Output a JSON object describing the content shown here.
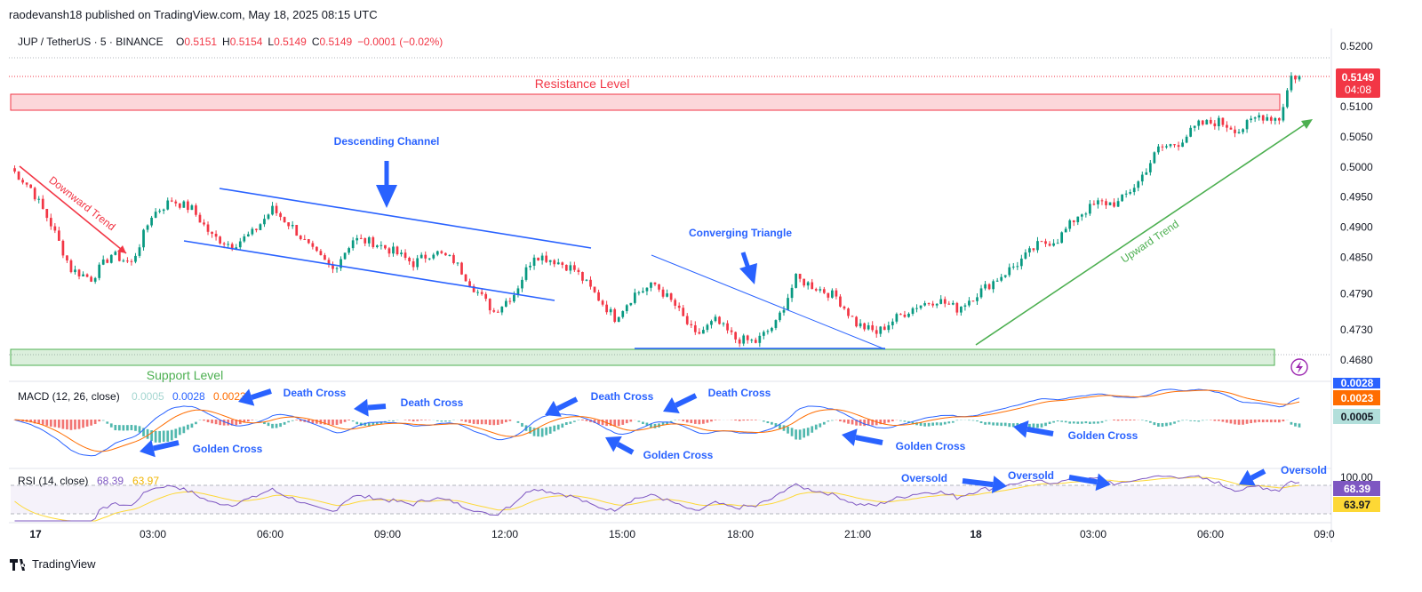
{
  "header": {
    "published": "raodevansh18 published on TradingView.com, May 18, 2025 08:15 UTC"
  },
  "legend": {
    "symbol": "JUP / TetherUS · 5 · BINANCE",
    "o_label": "O",
    "o_value": "0.5151",
    "h_label": "H",
    "h_value": "0.5154",
    "l_label": "L",
    "l_value": "0.5149",
    "c_label": "C",
    "c_value": "0.5149",
    "change": "−0.0001 (−0.02%)"
  },
  "price_axis": {
    "ticks": [
      "0.5200",
      "0.5149",
      "0.5100",
      "0.5050",
      "0.5000",
      "0.4950",
      "0.4900",
      "0.4850",
      "0.4790",
      "0.4730",
      "0.4680"
    ],
    "last_price": "0.5149",
    "countdown": "04:08"
  },
  "time_axis": {
    "ticks": [
      "17",
      "03:00",
      "06:00",
      "09:00",
      "12:00",
      "15:00",
      "18:00",
      "21:00",
      "18",
      "03:00",
      "06:00",
      "09:0"
    ]
  },
  "annotations": {
    "resistance": "Resistance Level",
    "support": "Support Level",
    "descending_channel": "Descending Channel",
    "converging_triangle": "Converging Triangle",
    "downward_trend": "Downward Trend",
    "upward_trend": "Upward Trend",
    "death_cross_1": "Death Cross",
    "death_cross_2": "Death Cross",
    "death_cross_3": "Death Cross",
    "death_cross_4": "Death Cross",
    "golden_cross_1": "Golden Cross",
    "golden_cross_2": "Golden Cross",
    "golden_cross_3": "Golden Cross",
    "golden_cross_4": "Golden Cross",
    "oversold_1": "Oversold",
    "oversold_2": "Oversold",
    "oversold_3": "Oversold"
  },
  "macd": {
    "label": "MACD (12, 26, close)",
    "hist_value": "0.0005",
    "macd_value": "0.0028",
    "signal_value": "0.0023",
    "axis_macd": "0.0028",
    "axis_signal": "0.0023",
    "axis_hist": "0.0005"
  },
  "rsi": {
    "label": "RSI (14, close)",
    "rsi_value": "68.39",
    "ma_value": "63.97",
    "axis_top": "100.00",
    "axis_rsi": "68.39",
    "axis_ma": "63.97"
  },
  "footer": {
    "brand": "TradingView"
  },
  "colors": {
    "up": "#089981",
    "down": "#f23645",
    "annotation_blue": "#2962ff",
    "resistance": "#f23645",
    "support": "#4caf50",
    "macd_line": "#2962ff",
    "signal_line": "#ff6d00",
    "rsi_line": "#7e57c2",
    "rsi_ma": "#fdd835"
  },
  "chart_data": {
    "type": "candlestick",
    "title": "JUP / TetherUS · 5 · BINANCE",
    "ylim": [
      0.466,
      0.5215
    ],
    "resistance_zone": [
      0.5087,
      0.5118
    ],
    "support_zone": [
      0.4672,
      0.4697
    ],
    "close_path": [
      [
        0,
        0.4998
      ],
      [
        5,
        0.4965
      ],
      [
        10,
        0.4905
      ],
      [
        15,
        0.483
      ],
      [
        20,
        0.4815
      ],
      [
        25,
        0.4855
      ],
      [
        30,
        0.484
      ],
      [
        35,
        0.492
      ],
      [
        40,
        0.4945
      ],
      [
        45,
        0.493
      ],
      [
        50,
        0.4885
      ],
      [
        55,
        0.487
      ],
      [
        60,
        0.489
      ],
      [
        65,
        0.493
      ],
      [
        70,
        0.49
      ],
      [
        75,
        0.486
      ],
      [
        80,
        0.483
      ],
      [
        85,
        0.488
      ],
      [
        90,
        0.4875
      ],
      [
        95,
        0.486
      ],
      [
        100,
        0.484
      ],
      [
        105,
        0.486
      ],
      [
        110,
        0.4845
      ],
      [
        115,
        0.48
      ],
      [
        120,
        0.476
      ],
      [
        125,
        0.479
      ],
      [
        130,
        0.4855
      ],
      [
        135,
        0.4845
      ],
      [
        140,
        0.483
      ],
      [
        145,
        0.479
      ],
      [
        150,
        0.475
      ],
      [
        155,
        0.479
      ],
      [
        160,
        0.4805
      ],
      [
        165,
        0.477
      ],
      [
        170,
        0.472
      ],
      [
        175,
        0.4745
      ],
      [
        180,
        0.4715
      ],
      [
        185,
        0.471
      ],
      [
        190,
        0.474
      ],
      [
        195,
        0.4815
      ],
      [
        200,
        0.48
      ],
      [
        205,
        0.4785
      ],
      [
        210,
        0.474
      ],
      [
        215,
        0.4725
      ],
      [
        220,
        0.475
      ],
      [
        225,
        0.477
      ],
      [
        230,
        0.478
      ],
      [
        235,
        0.4765
      ],
      [
        240,
        0.479
      ],
      [
        245,
        0.4815
      ],
      [
        250,
        0.484
      ],
      [
        255,
        0.487
      ],
      [
        260,
        0.488
      ],
      [
        265,
        0.492
      ],
      [
        270,
        0.494
      ],
      [
        275,
        0.494
      ],
      [
        280,
        0.4975
      ],
      [
        285,
        0.503
      ],
      [
        290,
        0.504
      ],
      [
        295,
        0.507
      ],
      [
        300,
        0.5075
      ],
      [
        305,
        0.506
      ],
      [
        310,
        0.5085
      ],
      [
        315,
        0.508
      ],
      [
        318,
        0.515
      ],
      [
        320,
        0.5149
      ]
    ]
  }
}
